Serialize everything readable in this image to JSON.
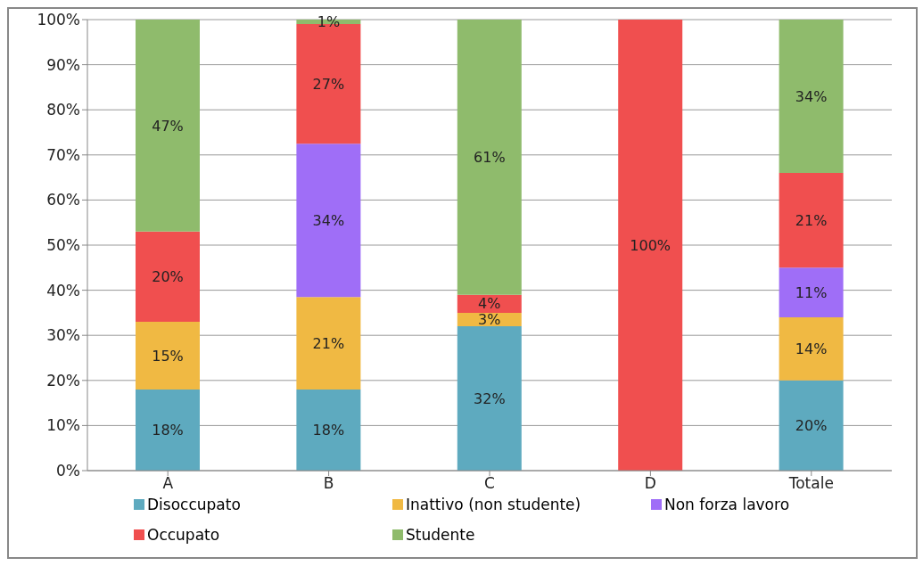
{
  "chart_data": {
    "type": "bar",
    "stacked": true,
    "categories": [
      "A",
      "B",
      "C",
      "D",
      "Totale"
    ],
    "series": [
      {
        "name": "Disoccupato",
        "color": "#5eaabf",
        "values": [
          18,
          18,
          32,
          null,
          20
        ],
        "value_labels": [
          "18%",
          "18%",
          "32%",
          null,
          "20%"
        ]
      },
      {
        "name": "Inattivo (non studente)",
        "color": "#f0b943",
        "values": [
          15,
          20.5,
          3,
          null,
          14
        ],
        "value_labels": [
          "15%",
          "21%",
          "3%",
          null,
          "14%"
        ]
      },
      {
        "name": "Non forza lavoro",
        "color": "#9f6ef7",
        "values": [
          null,
          34,
          null,
          null,
          11
        ],
        "value_labels": [
          null,
          "34%",
          null,
          null,
          "11%"
        ]
      },
      {
        "name": "Occupato",
        "color": "#f04f4f",
        "values": [
          20,
          26.5,
          4,
          100,
          21
        ],
        "value_labels": [
          "20%",
          "27%",
          "4%",
          "100%",
          "21%"
        ]
      },
      {
        "name": "Studente",
        "color": "#8fbb6c",
        "values": [
          47,
          1,
          61,
          null,
          34
        ],
        "value_labels": [
          "47%",
          "1%",
          "61%",
          null,
          "34%"
        ]
      }
    ],
    "ylim": [
      0,
      100
    ],
    "yticks": [
      {
        "value": 0,
        "label": "0%"
      },
      {
        "value": 10,
        "label": "10%"
      },
      {
        "value": 20,
        "label": "20%"
      },
      {
        "value": 30,
        "label": "30%"
      },
      {
        "value": 40,
        "label": "40%"
      },
      {
        "value": 50,
        "label": "50%"
      },
      {
        "value": 60,
        "label": "60%"
      },
      {
        "value": 70,
        "label": "70%"
      },
      {
        "value": 80,
        "label": "80%"
      },
      {
        "value": 90,
        "label": "90%"
      },
      {
        "value": 100,
        "label": "100%"
      }
    ],
    "grid": "y",
    "legend": "bottom"
  }
}
